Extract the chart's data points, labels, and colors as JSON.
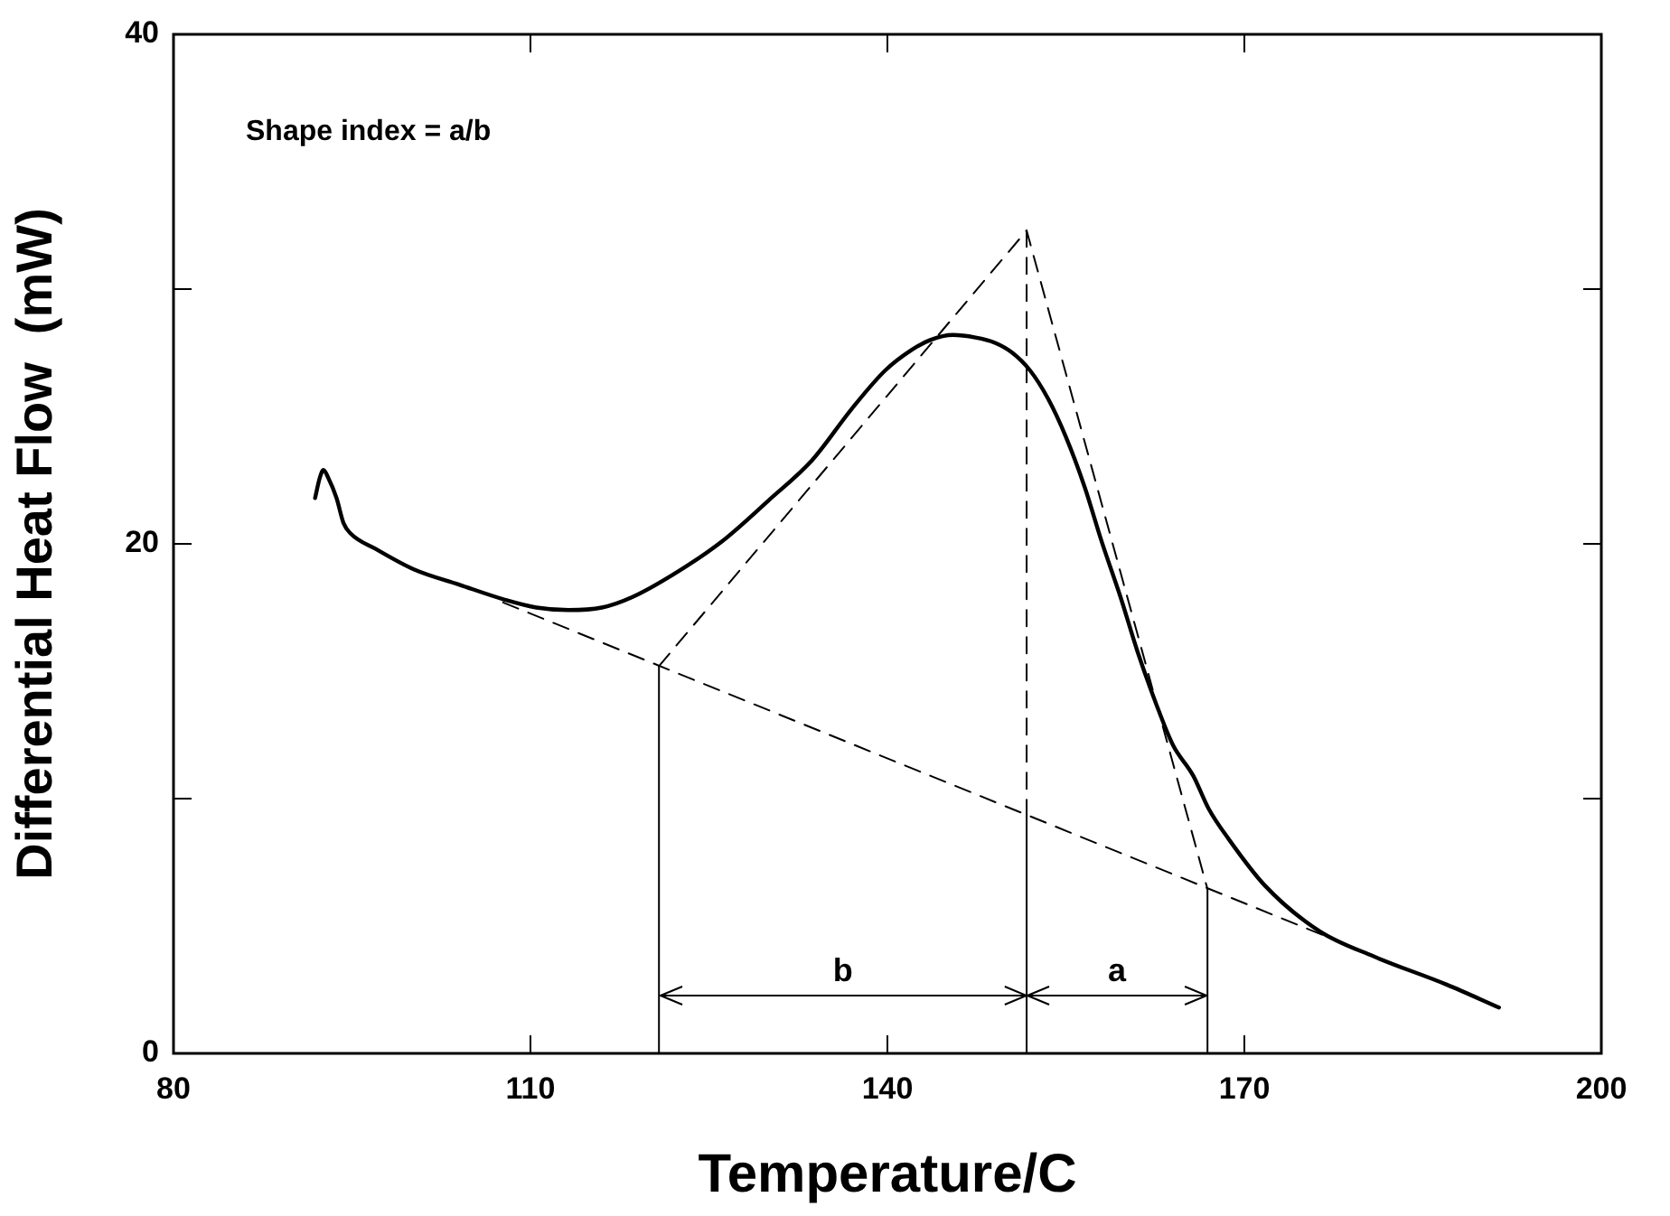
{
  "chart_data": {
    "type": "line",
    "xlabel": "Temperature/C",
    "ylabel": "Differential Heat Flow  (mW)",
    "xlim": [
      80,
      200
    ],
    "xticks": [
      80,
      110,
      140,
      170,
      200
    ],
    "ylim": [
      0,
      40
    ],
    "yticks": [
      0,
      {
        "value": 10,
        "label": null
      },
      20,
      {
        "value": 30,
        "label": null
      },
      40
    ],
    "grid": false,
    "legend": false,
    "marker": "none",
    "series": [
      {
        "color": "#000000",
        "line_style": "solid",
        "x": [
          91.9,
          92.3,
          92.6,
          93.0,
          93.7,
          94.3,
          94.9,
          97,
          100.2,
          104,
          107.9,
          110.5,
          113.2,
          116,
          118.5,
          122,
          126.1,
          130,
          133.7,
          137,
          139.8,
          142,
          143.6,
          145.5,
          147.4,
          149,
          150.5,
          152,
          153.5,
          155,
          156.6,
          158,
          159.6,
          161,
          162.6,
          164,
          165.7,
          167,
          168.7,
          171.7,
          176.3,
          180.9,
          187,
          191.4
        ],
        "values": [
          21.8,
          22.6,
          22.9,
          22.6,
          21.8,
          20.8,
          20.4,
          19.8,
          19.0,
          18.4,
          17.8,
          17.5,
          17.4,
          17.5,
          17.9,
          18.8,
          20.1,
          21.7,
          23.3,
          25.3,
          26.8,
          27.6,
          28.0,
          28.2,
          28.1,
          27.9,
          27.5,
          26.8,
          25.7,
          24.2,
          22.2,
          20.1,
          17.9,
          15.8,
          13.7,
          12.1,
          10.9,
          9.6,
          8.4,
          6.6,
          4.8,
          3.8,
          2.7,
          1.8
        ]
      },
      {
        "color": "#000000",
        "line_style": "dashed",
        "x": [
          107.7,
          183.7
        ],
        "values": [
          17.7,
          3.3
        ]
      },
      {
        "color": "#000000",
        "line_style": "dashed",
        "x": [
          120.8,
          151.7,
          166.9
        ],
        "values": [
          15.2,
          32.3,
          6.45
        ]
      },
      {
        "color": "#000000",
        "line_style": "dashed",
        "x": [
          151.7,
          151.7
        ],
        "values": [
          32.3,
          9.3
        ]
      },
      {
        "color": "#000000",
        "line_style": "solid",
        "x": [
          120.8,
          120.8
        ],
        "values": [
          0,
          15.2
        ]
      },
      {
        "color": "#000000",
        "line_style": "solid",
        "x": [
          151.7,
          151.7
        ],
        "values": [
          0,
          9.3
        ]
      },
      {
        "color": "#000000",
        "line_style": "solid",
        "x": [
          166.9,
          166.9
        ],
        "values": [
          0,
          6.45
        ]
      }
    ],
    "annotations": [
      "Shape index = a/b",
      "b",
      "a"
    ]
  }
}
